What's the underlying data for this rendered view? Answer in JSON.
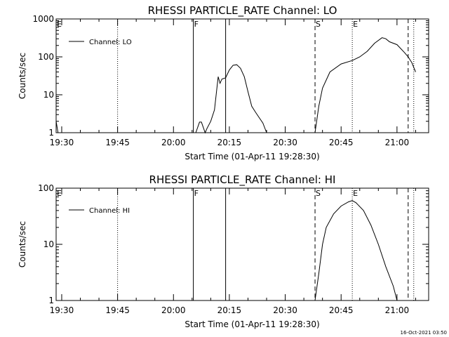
{
  "chart_data": [
    {
      "type": "line",
      "title": "RHESSI PARTICLE_RATE Channel: LO",
      "xlabel": "Start Time (01-Apr-11 19:28:30)",
      "ylabel": "Counts/sec",
      "yscale": "log",
      "ylim": [
        1,
        1000
      ],
      "xlim": [
        "19:28:30",
        "21:08:30"
      ],
      "x_ticks": [
        "19:30",
        "19:45",
        "20:00",
        "20:15",
        "20:30",
        "20:45",
        "21:00"
      ],
      "y_ticks": [
        "1",
        "10",
        "100",
        "1000"
      ],
      "legend": {
        "label": "Channel: LO",
        "placement": "top-left"
      },
      "grid": false,
      "series": [
        {
          "name": "Channel: LO",
          "segments": [
            {
              "x": [
                "19:28:30",
                "19:29:00"
              ],
              "y": [
                2.0,
                1.0
              ]
            },
            {
              "x": [
                "20:06:00",
                "20:07:00",
                "20:07:30",
                "20:08:30",
                "20:09:00",
                "20:10:00",
                "20:11:00",
                "20:12:00",
                "20:12:30",
                "20:13:00",
                "20:14:00",
                "20:15:00",
                "20:16:00",
                "20:17:00",
                "20:18:00",
                "20:19:00",
                "20:20:00",
                "20:21:00",
                "20:22:00",
                "20:23:00",
                "20:24:00",
                "20:25:00"
              ],
              "y": [
                1.0,
                1.9,
                1.9,
                1.0,
                1.3,
                2.0,
                4,
                30,
                20,
                26,
                28,
                45,
                60,
                62,
                50,
                30,
                12,
                5,
                3.5,
                2.5,
                1.8,
                1.0
              ]
            },
            {
              "x": [
                "20:38:00",
                "20:39:00",
                "20:40:00",
                "20:42:00",
                "20:45:00",
                "20:48:00",
                "20:50:00",
                "20:52:00",
                "20:54:00",
                "20:56:00",
                "20:57:00",
                "20:58:00",
                "21:00:00",
                "21:02:00",
                "21:03:00",
                "21:04:00",
                "21:05:00"
              ],
              "y": [
                1.0,
                5,
                15,
                40,
                65,
                80,
                100,
                140,
                230,
                320,
                300,
                250,
                210,
                130,
                100,
                70,
                40
              ]
            }
          ]
        }
      ],
      "vlines": [
        {
          "label": "E",
          "x": "19:28:30",
          "style": "solid"
        },
        {
          "label": "",
          "x": "19:45:00",
          "style": "dotted"
        },
        {
          "label": "F",
          "x": "20:05:20",
          "style": "solid"
        },
        {
          "label": "",
          "x": "20:14:00",
          "style": "solid"
        },
        {
          "label": "S",
          "x": "20:38:00",
          "style": "dashed"
        },
        {
          "label": "E",
          "x": "20:48:00",
          "style": "dotted"
        },
        {
          "label": "",
          "x": "21:03:00",
          "style": "dashed"
        },
        {
          "label": "",
          "x": "21:04:30",
          "style": "dotted"
        }
      ]
    },
    {
      "type": "line",
      "title": "RHESSI PARTICLE_RATE Channel: HI",
      "xlabel": "Start Time (01-Apr-11 19:28:30)",
      "ylabel": "Counts/sec",
      "yscale": "log",
      "ylim": [
        1,
        100
      ],
      "xlim": [
        "19:28:30",
        "21:08:30"
      ],
      "x_ticks": [
        "19:30",
        "19:45",
        "20:00",
        "20:15",
        "20:30",
        "20:45",
        "21:00"
      ],
      "y_ticks": [
        "1",
        "10",
        "100"
      ],
      "legend": {
        "label": "Channel: HI",
        "placement": "top-left"
      },
      "grid": false,
      "series": [
        {
          "name": "Channel: HI",
          "segments": [
            {
              "x": [
                "20:38:00",
                "20:39:00",
                "20:40:00",
                "20:41:00",
                "20:43:00",
                "20:45:00",
                "20:47:00",
                "20:48:00",
                "20:49:00",
                "20:51:00",
                "20:53:00",
                "20:55:00",
                "20:57:00",
                "20:59:00",
                "21:00:00"
              ],
              "y": [
                1.0,
                3,
                10,
                20,
                35,
                48,
                57,
                60,
                55,
                40,
                22,
                10,
                4,
                1.8,
                1.0
              ]
            }
          ]
        }
      ],
      "vlines": [
        {
          "label": "E",
          "x": "19:28:30",
          "style": "solid"
        },
        {
          "label": "",
          "x": "19:45:00",
          "style": "dotted"
        },
        {
          "label": "F",
          "x": "20:05:20",
          "style": "solid"
        },
        {
          "label": "",
          "x": "20:14:00",
          "style": "solid"
        },
        {
          "label": "S",
          "x": "20:38:00",
          "style": "dashed"
        },
        {
          "label": "E",
          "x": "20:48:00",
          "style": "dotted"
        },
        {
          "label": "",
          "x": "21:03:00",
          "style": "dashed"
        },
        {
          "label": "",
          "x": "21:04:30",
          "style": "dotted"
        }
      ]
    }
  ],
  "footer": {
    "timestamp": "16-Oct-2021 03:50"
  }
}
